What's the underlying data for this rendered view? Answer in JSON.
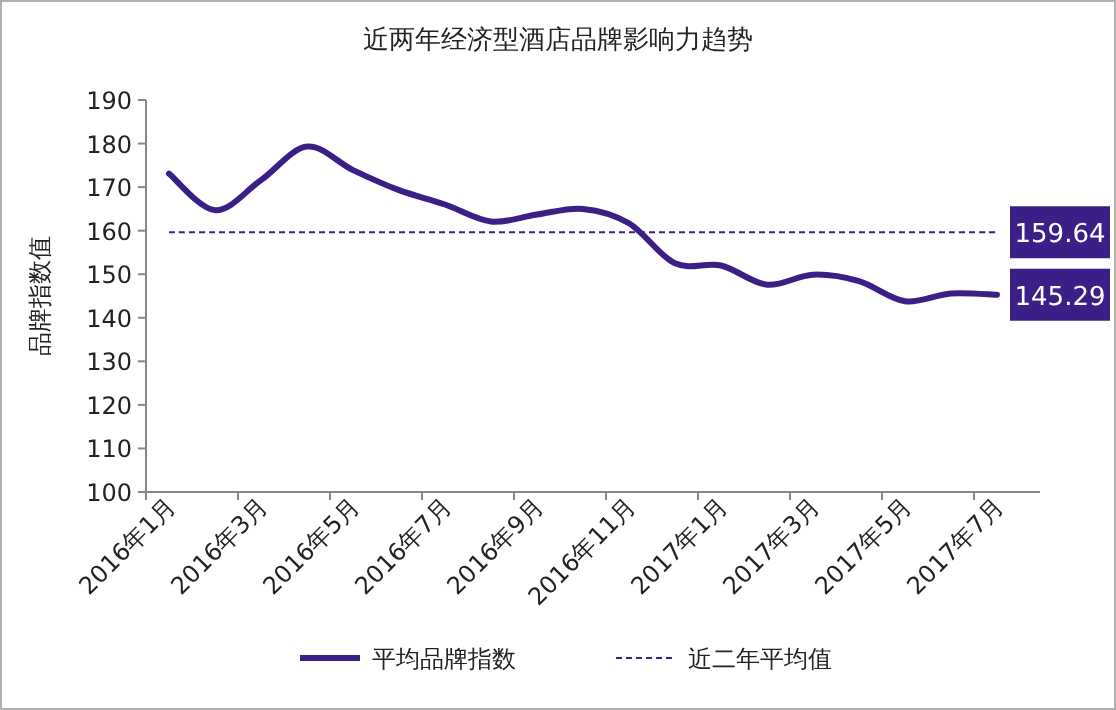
{
  "chart_data": {
    "type": "line",
    "title": "近两年经济型酒店品牌影响力趋势",
    "ylabel": "品牌指数值",
    "categories": [
      "2016年1月",
      null,
      "2016年3月",
      null,
      "2016年5月",
      null,
      "2016年7月",
      null,
      "2016年9月",
      null,
      "2016年11月",
      null,
      "2017年1月",
      null,
      "2017年3月",
      null,
      "2017年5月",
      null,
      "2017年7月"
    ],
    "series": [
      {
        "name": "平均品牌指数",
        "color": "#3c1f86",
        "values": [
          173.1,
          164.7,
          171.6,
          179.3,
          173.9,
          169.3,
          166.0,
          162.1,
          163.7,
          165.0,
          161.7,
          152.5,
          152.0,
          147.6,
          149.9,
          148.4,
          143.8,
          145.6,
          145.29
        ],
        "value_labels": [
          null,
          null,
          null,
          null,
          null,
          null,
          null,
          null,
          null,
          null,
          null,
          null,
          null,
          null,
          null,
          null,
          null,
          null,
          "145.29"
        ]
      },
      {
        "name": "近二年平均值",
        "color": "#3c1f86",
        "line_style": "dashed",
        "values": [
          159.64,
          159.64,
          159.64,
          159.64,
          159.64,
          159.64,
          159.64,
          159.64,
          159.64,
          159.64,
          159.64,
          159.64,
          159.64,
          159.64,
          159.64,
          159.64,
          159.64,
          159.64,
          159.64
        ],
        "value_labels": [
          null,
          null,
          null,
          null,
          null,
          null,
          null,
          null,
          null,
          null,
          null,
          null,
          null,
          null,
          null,
          null,
          null,
          null,
          "159.64"
        ]
      }
    ],
    "ylim": [
      100,
      190
    ],
    "yticks": [
      100,
      110,
      120,
      130,
      140,
      150,
      160,
      170,
      180,
      190
    ],
    "grid": false,
    "legend": "bottom",
    "marker": "none",
    "line_style": "solid"
  }
}
